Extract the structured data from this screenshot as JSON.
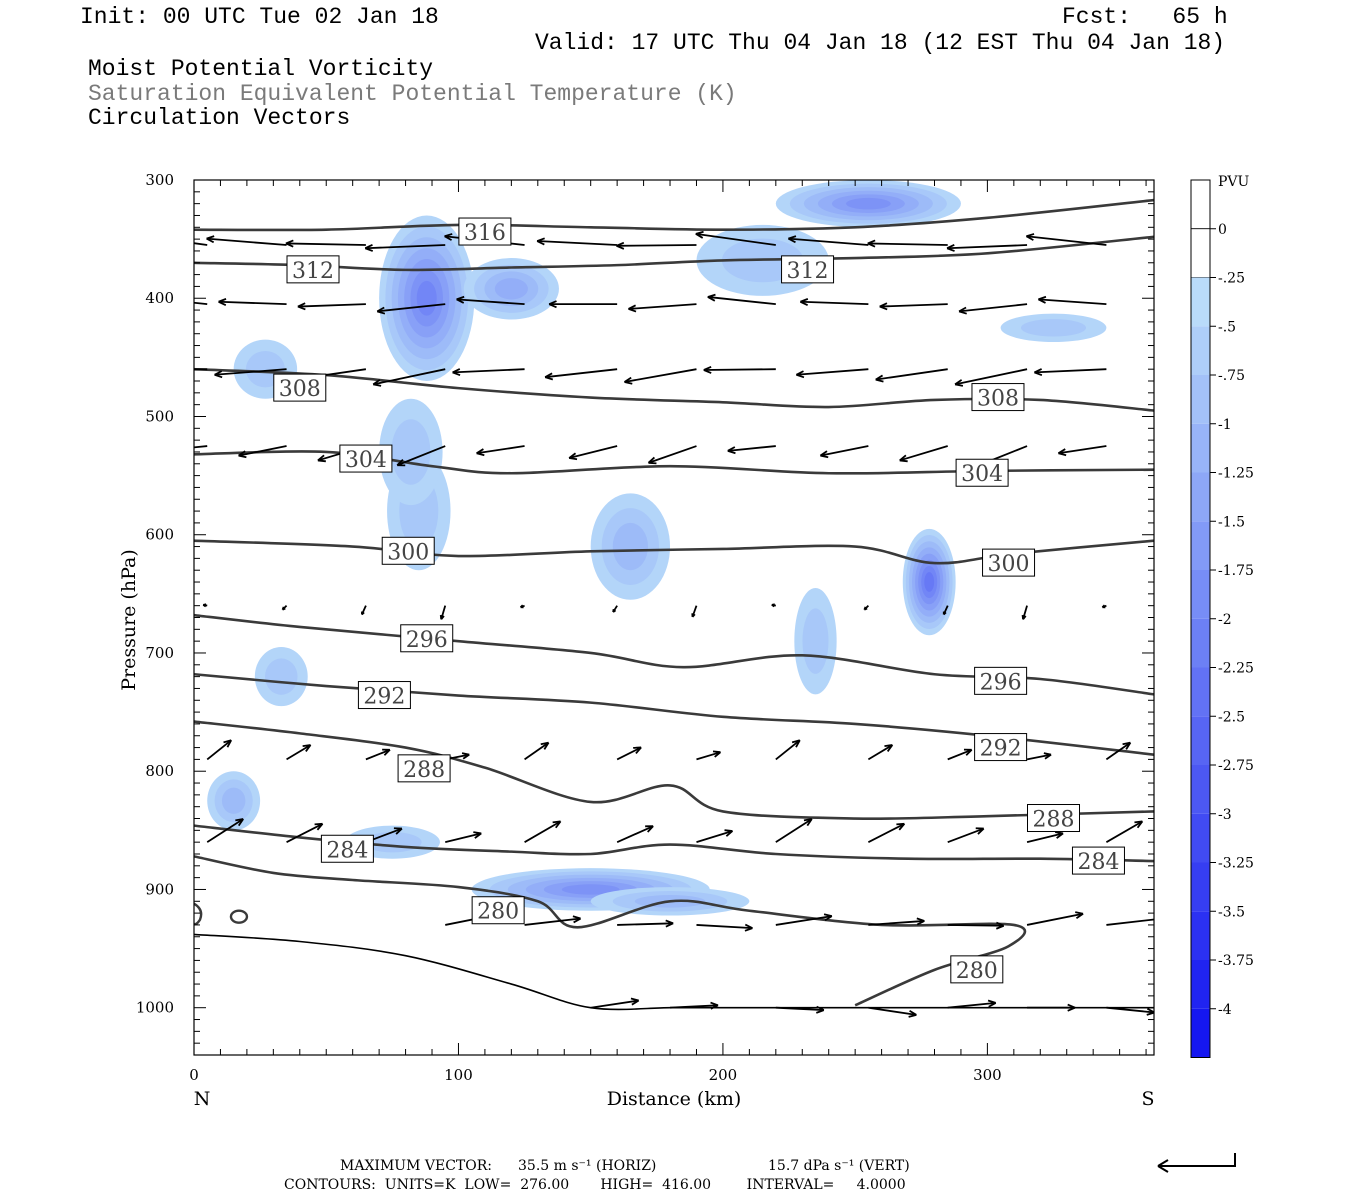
{
  "header": {
    "init": "Init: 00 UTC Tue 02 Jan 18",
    "fcst": "Fcst:   65 h",
    "valid": "Valid: 17 UTC Thu 04 Jan 18 (12 EST Thu 04 Jan 18)",
    "field1": "Moist Potential Vorticity",
    "field2": "Saturation Equivalent Potential Temperature (K)",
    "field3": "Circulation Vectors"
  },
  "footer": {
    "max_vector_label": "MAXIMUM VECTOR:",
    "max_horiz": "35.5 m s⁻¹ (HORIZ)",
    "max_vert": "15.7 dPa s⁻¹ (VERT)",
    "contours": "CONTOURS:  UNITS=K  LOW=  276.00       HIGH=  416.00        INTERVAL=     4.0000"
  },
  "colors": {
    "contour": "#3a3a3a",
    "pv_light": "#b4dcf8",
    "pv_mid": "#96aaf4",
    "pv_dark": "#6a74ee",
    "colorbar_min": "#1010f0"
  },
  "chart_data": {
    "type": "contour",
    "xlabel": "Distance (km)",
    "ylabel": "Pressure (hPa)",
    "xlim": [
      0,
      363
    ],
    "ylim": [
      1040,
      300
    ],
    "x_ticks": [
      0,
      100,
      200,
      300
    ],
    "y_ticks": [
      300,
      400,
      500,
      600,
      700,
      800,
      900,
      1000
    ],
    "x_end_labels": {
      "left": "N",
      "right": "S"
    },
    "colorbar": {
      "unit": "PVU",
      "levels": [
        "0",
        "-.25",
        "-.5",
        "-.75",
        "-1",
        "-1.25",
        "-1.5",
        "-1.75",
        "-2",
        "-2.25",
        "-2.5",
        "-2.75",
        "-3",
        "-3.25",
        "-3.5",
        "-3.75",
        "-4"
      ]
    },
    "theta_contours": [
      {
        "level": 316,
        "x": [
          0,
          50,
          100,
          150,
          200,
          250,
          300,
          363
        ],
        "p": [
          342,
          342,
          338,
          340,
          342,
          340,
          332,
          317
        ]
      },
      {
        "level": 312,
        "x": [
          0,
          40,
          80,
          120,
          160,
          200,
          250,
          300,
          363
        ],
        "p": [
          370,
          372,
          376,
          374,
          372,
          368,
          366,
          362,
          348
        ]
      },
      {
        "level": 308,
        "x": [
          0,
          50,
          100,
          150,
          200,
          240,
          280,
          320,
          363
        ],
        "p": [
          460,
          465,
          476,
          484,
          488,
          492,
          486,
          486,
          495
        ]
      },
      {
        "level": 304,
        "x": [
          0,
          50,
          90,
          120,
          180,
          240,
          300,
          363
        ],
        "p": [
          532,
          530,
          542,
          548,
          542,
          548,
          546,
          545
        ]
      },
      {
        "level": 300,
        "x": [
          0,
          60,
          100,
          150,
          200,
          250,
          280,
          310,
          363
        ],
        "p": [
          605,
          610,
          618,
          614,
          612,
          610,
          624,
          616,
          605
        ]
      },
      {
        "level": 296,
        "x": [
          0,
          40,
          100,
          150,
          185,
          230,
          280,
          320,
          363
        ],
        "p": [
          668,
          678,
          690,
          700,
          712,
          702,
          718,
          722,
          735
        ]
      },
      {
        "level": 292,
        "x": [
          0,
          50,
          100,
          150,
          200,
          250,
          300,
          363
        ],
        "p": [
          718,
          728,
          736,
          742,
          754,
          760,
          770,
          786
        ]
      },
      {
        "level": 288,
        "x": [
          0,
          40,
          80,
          110,
          150,
          180,
          200,
          250,
          300,
          363
        ],
        "p": [
          758,
          768,
          780,
          797,
          826,
          812,
          834,
          840,
          838,
          834
        ]
      },
      {
        "level": 284,
        "x": [
          0,
          40,
          80,
          120,
          150,
          180,
          220,
          270,
          320,
          363
        ],
        "p": [
          846,
          856,
          864,
          868,
          870,
          862,
          870,
          874,
          874,
          876
        ]
      },
      {
        "level": 280,
        "x": [
          0,
          30,
          60,
          100,
          130,
          145,
          180,
          210,
          260,
          310,
          308,
          280,
          250
        ],
        "p": [
          872,
          886,
          892,
          898,
          910,
          932,
          910,
          918,
          930,
          930,
          948,
          968,
          998
        ]
      }
    ],
    "theta_labels": [
      {
        "text": "316",
        "x": 110,
        "p": 344
      },
      {
        "text": "312",
        "x": 45,
        "p": 376
      },
      {
        "text": "312",
        "x": 232,
        "p": 376
      },
      {
        "text": "308",
        "x": 40,
        "p": 476
      },
      {
        "text": "308",
        "x": 304,
        "p": 484
      },
      {
        "text": "304",
        "x": 65,
        "p": 536
      },
      {
        "text": "304",
        "x": 298,
        "p": 548
      },
      {
        "text": "300",
        "x": 81,
        "p": 614
      },
      {
        "text": "300",
        "x": 308,
        "p": 624
      },
      {
        "text": "296",
        "x": 88,
        "p": 688
      },
      {
        "text": "296",
        "x": 305,
        "p": 724
      },
      {
        "text": "292",
        "x": 72,
        "p": 736
      },
      {
        "text": "292",
        "x": 305,
        "p": 780
      },
      {
        "text": "288",
        "x": 87,
        "p": 798
      },
      {
        "text": "288",
        "x": 325,
        "p": 840
      },
      {
        "text": "284",
        "x": 58,
        "p": 866
      },
      {
        "text": "284",
        "x": 342,
        "p": 876
      },
      {
        "text": "280",
        "x": 115,
        "p": 918
      },
      {
        "text": "280",
        "x": 296,
        "p": 968
      }
    ],
    "terrain": {
      "x": [
        0,
        40,
        80,
        120,
        150,
        180,
        200,
        250,
        363
      ],
      "p": [
        938,
        944,
        956,
        980,
        1000,
        1000,
        1000,
        1000,
        1000
      ]
    },
    "pv_blobs": [
      {
        "x": 88,
        "p": 400,
        "rx": 18,
        "rp": 70,
        "pv": -1.75
      },
      {
        "x": 120,
        "p": 392,
        "rx": 18,
        "rp": 26,
        "pv": -1.0
      },
      {
        "x": 255,
        "p": 320,
        "rx": 35,
        "rp": 20,
        "pv": -1.5
      },
      {
        "x": 215,
        "p": 368,
        "rx": 25,
        "rp": 30,
        "pv": -0.5
      },
      {
        "x": 278,
        "p": 640,
        "rx": 10,
        "rp": 45,
        "pv": -2.0
      },
      {
        "x": 165,
        "p": 610,
        "rx": 15,
        "rp": 45,
        "pv": -0.75
      },
      {
        "x": 235,
        "p": 690,
        "rx": 8,
        "rp": 45,
        "pv": -0.5
      },
      {
        "x": 150,
        "p": 900,
        "rx": 45,
        "rp": 18,
        "pv": -1.5
      },
      {
        "x": 180,
        "p": 910,
        "rx": 30,
        "rp": 12,
        "pv": -0.75
      },
      {
        "x": 75,
        "p": 860,
        "rx": 18,
        "rp": 14,
        "pv": -0.5
      },
      {
        "x": 15,
        "p": 825,
        "rx": 10,
        "rp": 25,
        "pv": -0.75
      },
      {
        "x": 33,
        "p": 720,
        "rx": 10,
        "rp": 25,
        "pv": -0.5
      },
      {
        "x": 85,
        "p": 580,
        "rx": 12,
        "rp": 50,
        "pv": -0.5
      },
      {
        "x": 82,
        "p": 530,
        "rx": 12,
        "rp": 45,
        "pv": -0.5
      },
      {
        "x": 325,
        "p": 425,
        "rx": 20,
        "rp": 12,
        "pv": -0.5
      },
      {
        "x": 27,
        "p": 460,
        "rx": 12,
        "rp": 25,
        "pv": -0.5
      }
    ],
    "vector_rows": [
      {
        "p": 355,
        "x": [
          5,
          35,
          65,
          95,
          125,
          160,
          190,
          220,
          255,
          285,
          315,
          345
        ],
        "u": -1,
        "w": -0.05
      },
      {
        "p": 405,
        "x": [
          5,
          35,
          65,
          95,
          125,
          160,
          190,
          220,
          255,
          285,
          315,
          345
        ],
        "u": -0.85,
        "w": 0
      },
      {
        "p": 460,
        "x": [
          5,
          35,
          65,
          95,
          125,
          160,
          190,
          220,
          255,
          285,
          315,
          345
        ],
        "u": -0.9,
        "w": 0.1
      },
      {
        "p": 525,
        "x": [
          5,
          35,
          65,
          95,
          125,
          160,
          190,
          220,
          255,
          285,
          315,
          345
        ],
        "u": -0.6,
        "w": 0.15
      },
      {
        "p": 660,
        "x": [
          5,
          35,
          65,
          95,
          125,
          160,
          190,
          220,
          255,
          285,
          315,
          345
        ],
        "u": -0.05,
        "w": 0.08
      },
      {
        "p": 790,
        "x": [
          5,
          35,
          65,
          95,
          125,
          160,
          190,
          220,
          255,
          285,
          315,
          345
        ],
        "u": 0.3,
        "w": -0.15
      },
      {
        "p": 860,
        "x": [
          5,
          35,
          65,
          95,
          125,
          160,
          190,
          220,
          255,
          285,
          315,
          345
        ],
        "u": 0.45,
        "w": -0.2
      },
      {
        "p": 930,
        "x": [
          95,
          125,
          160,
          190,
          220,
          255,
          285,
          315,
          345
        ],
        "u": 0.7,
        "w": -0.05
      },
      {
        "p": 1000,
        "x": [
          150,
          180,
          220,
          255,
          285,
          315,
          345
        ],
        "u": 0.6,
        "w": 0
      }
    ]
  }
}
